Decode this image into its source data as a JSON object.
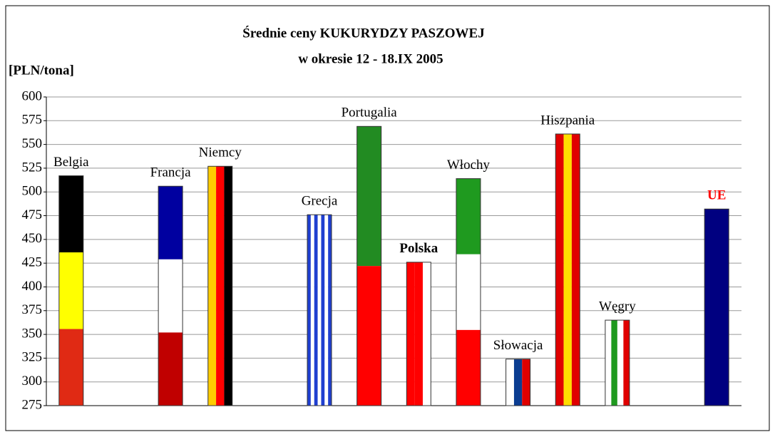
{
  "chart_data": {
    "type": "bar",
    "title": "Średnie ceny KUKURYDZY PASZOWEJ",
    "subtitle": "w okresie 12 - 18.IX 2005",
    "y_label": "[PLN/tona]",
    "categories": [
      "Belgia",
      null,
      "Francja",
      "Niemcy",
      null,
      "Grecja",
      "Portugalia",
      "Polska",
      "Włochy",
      "Słowacja",
      "Hiszpania",
      "Węgry",
      null,
      "UE"
    ],
    "values": [
      517,
      null,
      506,
      527,
      null,
      476,
      569,
      426,
      514,
      324,
      561,
      365,
      null,
      482
    ],
    "flags": [
      {
        "dir": "h",
        "colors": [
          "#000000",
          "#ffff00",
          "#e02a14"
        ]
      },
      null,
      {
        "dir": "h",
        "colors": [
          "#0000a0",
          "#ffffff",
          "#c00000"
        ]
      },
      {
        "dir": "v",
        "colors": [
          "#ffcc00",
          "#ff0000",
          "#000000"
        ]
      },
      null,
      {
        "dir": "v",
        "colors": [
          "#1f3fd0",
          "#ffffff",
          "#1f3fd0",
          "#ffffff",
          "#1f3fd0",
          "#ffffff",
          "#1f3fd0"
        ]
      },
      {
        "dir": "h",
        "colors": [
          "#228b22",
          "#ff0000"
        ]
      },
      {
        "dir": "v",
        "colors": [
          "#ff0000",
          "#ff0000",
          "#ffffff"
        ]
      },
      {
        "dir": "h",
        "colors": [
          "#1f9a1f",
          "#ffffff",
          "#ff0000"
        ]
      },
      {
        "dir": "v",
        "colors": [
          "#ffffff",
          "#0b3d91",
          "#e00000"
        ]
      },
      {
        "dir": "v",
        "colors": [
          "#e00000",
          "#ffdd00",
          "#e00000"
        ]
      },
      {
        "dir": "v",
        "colors": [
          "#ffffff",
          "#1f9a1f",
          "#ffffff",
          "#e00000"
        ]
      },
      null,
      {
        "dir": "v",
        "colors": [
          "#000080"
        ]
      }
    ],
    "bold_labels": [
      7,
      13
    ],
    "highlight_label": 13,
    "highlight_color": "#ff0000",
    "ylim": [
      275,
      600
    ],
    "yticks": [
      275,
      300,
      325,
      350,
      375,
      400,
      425,
      450,
      475,
      500,
      525,
      550,
      575,
      600
    ],
    "grid": true
  }
}
